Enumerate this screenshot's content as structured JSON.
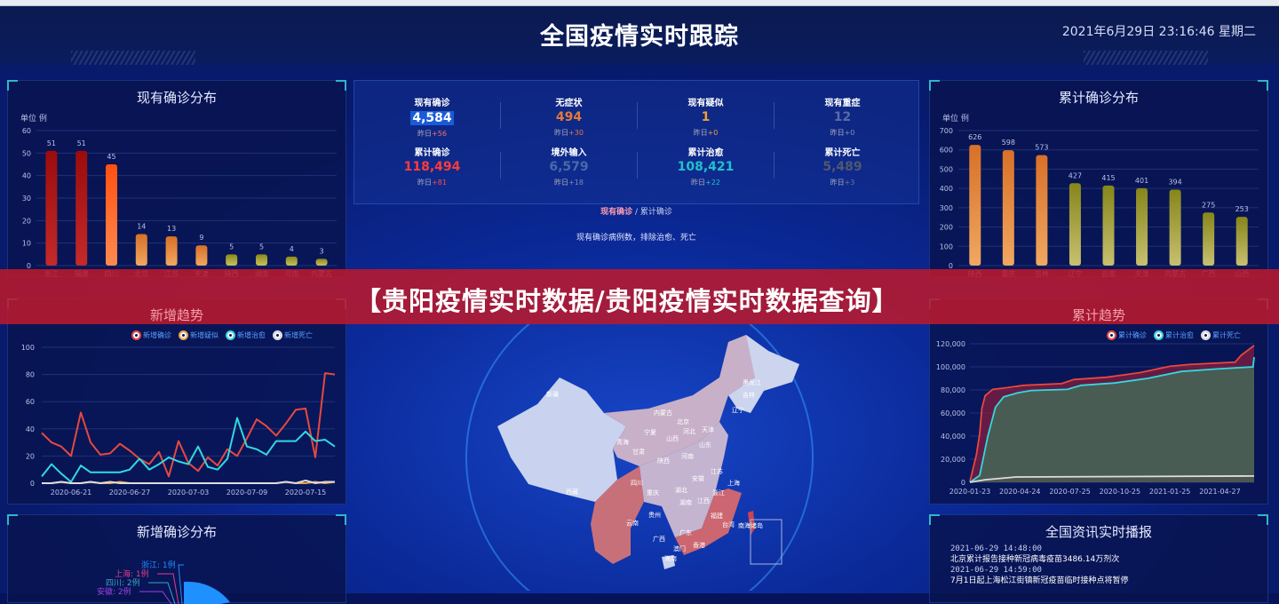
{
  "header": {
    "title": "全国疫情实时跟踪",
    "datetime": "2021年6月29日  23:16:46  星期二"
  },
  "colors": {
    "accent": "#2fb7c8",
    "banner": "#b9192d",
    "confirmed": "#e8483e",
    "recovered": "#32d9e0",
    "suspected": "#f0a040",
    "deaths": "#888888"
  },
  "banner": {
    "text": "【贵阳疫情实时数据/贵阳疫情实时数据查询】"
  },
  "stats": [
    {
      "label": "现有确诊",
      "value": "4,584",
      "yesterday_label": "昨日",
      "delta": "+56",
      "color": "#ffffff",
      "delta_color": "#ff6b6b",
      "highlight": true
    },
    {
      "label": "无症状",
      "value": "494",
      "yesterday_label": "昨日",
      "delta": "+30",
      "color": "#e07a3c",
      "delta_color": "#e07a3c"
    },
    {
      "label": "现有疑似",
      "value": "1",
      "yesterday_label": "昨日",
      "delta": "+0",
      "color": "#f0a030",
      "delta_color": "#f0a030"
    },
    {
      "label": "现有重症",
      "value": "12",
      "yesterday_label": "昨日",
      "delta": "+0",
      "color": "#5a6aa8",
      "delta_color": "#8890b8"
    },
    {
      "label": "累计确诊",
      "value": "118,494",
      "yesterday_label": "昨日",
      "delta": "+81",
      "color": "#ff3b3b",
      "delta_color": "#ff4b4b"
    },
    {
      "label": "境外输入",
      "value": "6,579",
      "yesterday_label": "昨日",
      "delta": "+18",
      "color": "#4a6aa8",
      "delta_color": "#7a8ab8"
    },
    {
      "label": "累计治愈",
      "value": "108,421",
      "yesterday_label": "昨日",
      "delta": "+22",
      "color": "#22c2c8",
      "delta_color": "#22c2c8"
    },
    {
      "label": "累计死亡",
      "value": "5,489",
      "yesterday_label": "昨日",
      "delta": "+3",
      "color": "#505870",
      "delta_color": "#707890"
    }
  ],
  "map_toggle": {
    "active": "现有确诊",
    "separator": "/",
    "inactive": "累计确诊"
  },
  "map_desc": "现有确诊病例数，排除治愈、死亡",
  "map_labels": [
    "新疆",
    "西藏",
    "青海",
    "甘肃",
    "宁夏",
    "内蒙古",
    "黑龙江",
    "吉林",
    "辽宁",
    "北京",
    "天津",
    "山西",
    "河北",
    "山东",
    "陕西",
    "河南",
    "四川",
    "重庆",
    "湖北",
    "安徽",
    "江苏",
    "上海",
    "浙江",
    "湖南",
    "江西",
    "贵州",
    "云南",
    "广西",
    "广东",
    "福建",
    "台湾",
    "香港",
    "澳门",
    "海南",
    "南海诸岛"
  ],
  "chart_data": [
    {
      "id": "current",
      "type": "bar",
      "title": "现有确诊分布",
      "unit_label": "单位 例",
      "categories": [
        "浙江",
        "福建",
        "四川",
        "北京",
        "江苏",
        "天津",
        "陕西",
        "湖南",
        "河南",
        "内蒙古"
      ],
      "values": [
        51,
        51,
        45,
        14,
        13,
        9,
        5,
        5,
        4,
        3
      ],
      "ylim": [
        0,
        60
      ],
      "yticks": [
        0,
        10,
        20,
        30,
        40,
        50,
        60
      ],
      "grid": true
    },
    {
      "id": "cumulative",
      "type": "bar",
      "title": "累计确诊分布",
      "unit_label": "单位 例",
      "categories": [
        "陕西",
        "重庆",
        "吉林",
        "辽宁",
        "云南",
        "天津",
        "内蒙古",
        "广西",
        "山西"
      ],
      "values": [
        626,
        598,
        573,
        427,
        415,
        401,
        394,
        275,
        253
      ],
      "ylim": [
        0,
        700
      ],
      "yticks": [
        0,
        100,
        200,
        300,
        400,
        500,
        600,
        700
      ],
      "grid": true
    },
    {
      "id": "new_trend",
      "type": "line",
      "title": "新增趋势",
      "x_start": "2020-06-18",
      "xticks": [
        "2020-06-21",
        "2020-06-27",
        "2020-07-03",
        "2020-07-09",
        "2020-07-15"
      ],
      "ylim": [
        0,
        100
      ],
      "yticks": [
        0,
        20,
        40,
        60,
        80,
        100
      ],
      "legend": "top-right",
      "series": [
        {
          "name": "新增确诊",
          "color": "#e8483e",
          "values": [
            37,
            30,
            27,
            20,
            52,
            30,
            21,
            22,
            29,
            24,
            18,
            14,
            23,
            5,
            31,
            15,
            9,
            19,
            13,
            25,
            20,
            33,
            47,
            42,
            35,
            44,
            54,
            55,
            19,
            81,
            80
          ]
        },
        {
          "name": "新增疑似",
          "color": "#f0a040",
          "values": [
            0,
            0,
            1,
            0,
            0,
            1,
            0,
            0,
            1,
            0,
            0,
            0,
            0,
            0,
            0,
            0,
            0,
            0,
            0,
            0,
            0,
            0,
            0,
            0,
            0,
            1,
            0,
            0,
            1,
            0,
            1
          ]
        },
        {
          "name": "新增治愈",
          "color": "#32d9e0",
          "values": [
            5,
            14,
            7,
            1,
            13,
            8,
            8,
            8,
            8,
            10,
            18,
            10,
            14,
            19,
            16,
            14,
            27,
            12,
            10,
            18,
            48,
            27,
            25,
            21,
            31,
            31,
            31,
            38,
            31,
            32,
            27
          ]
        },
        {
          "name": "新增死亡",
          "color": "#dddddd",
          "values": [
            0,
            0,
            1,
            0,
            0,
            1,
            0,
            1,
            0,
            0,
            0,
            0,
            0,
            0,
            0,
            0,
            0,
            0,
            0,
            0,
            0,
            0,
            0,
            0,
            0,
            1,
            0,
            2,
            0,
            1,
            1
          ]
        }
      ]
    },
    {
      "id": "cum_trend",
      "type": "area",
      "title": "累计趋势",
      "xticks": [
        "2020-01-23",
        "2020-04-24",
        "2020-07-25",
        "2020-10-25",
        "2021-01-25",
        "2021-04-27"
      ],
      "xlim": [
        "2020-01-23",
        "2021-06-29"
      ],
      "ylim": [
        0,
        120000
      ],
      "yticks": [
        0,
        20000,
        40000,
        60000,
        80000,
        100000,
        120000
      ],
      "legend": "top-right",
      "series": [
        {
          "name": "累计确诊",
          "color": "#e8483e",
          "points": [
            [
              "2020-01-23",
              600
            ],
            [
              "2020-02-04",
              24000
            ],
            [
              "2020-02-10",
              42000
            ],
            [
              "2020-02-14",
              64000
            ],
            [
              "2020-02-20",
              75000
            ],
            [
              "2020-03-05",
              80500
            ],
            [
              "2020-04-01",
              82000
            ],
            [
              "2020-05-01",
              84000
            ],
            [
              "2020-07-10",
              85500
            ],
            [
              "2020-08-01",
              89000
            ],
            [
              "2020-10-01",
              91000
            ],
            [
              "2020-12-01",
              95000
            ],
            [
              "2021-01-25",
              100500
            ],
            [
              "2021-03-01",
              102000
            ],
            [
              "2021-05-25",
              104000
            ],
            [
              "2021-06-05",
              110000
            ],
            [
              "2021-06-29",
              118494
            ]
          ]
        },
        {
          "name": "累计治愈",
          "color": "#32d9e0",
          "points": [
            [
              "2020-01-23",
              0
            ],
            [
              "2020-02-10",
              6000
            ],
            [
              "2020-02-25",
              40000
            ],
            [
              "2020-03-10",
              65000
            ],
            [
              "2020-03-25",
              74000
            ],
            [
              "2020-04-20",
              77500
            ],
            [
              "2020-05-15",
              79500
            ],
            [
              "2020-07-20",
              80500
            ],
            [
              "2020-08-15",
              84000
            ],
            [
              "2020-10-15",
              86000
            ],
            [
              "2020-12-15",
              90000
            ],
            [
              "2021-02-15",
              96000
            ],
            [
              "2021-04-15",
              98000
            ],
            [
              "2021-06-27",
              100000
            ],
            [
              "2021-06-29",
              108421
            ]
          ]
        },
        {
          "name": "累计死亡",
          "color": "#dddddd",
          "points": [
            [
              "2020-01-23",
              17
            ],
            [
              "2020-02-20",
              2200
            ],
            [
              "2020-04-17",
              4600
            ],
            [
              "2021-06-29",
              5489
            ]
          ]
        }
      ]
    },
    {
      "id": "new_dist",
      "type": "pie",
      "title": "新增确诊分布",
      "slices": [
        {
          "label": "浙江: 1例",
          "value": 1,
          "color": "#1e90ff"
        },
        {
          "label": "上海: 1例",
          "value": 1,
          "color": "#e0408a"
        },
        {
          "label": "四川: 2例",
          "value": 2,
          "color": "#3aa8c8"
        },
        {
          "label": "安徽: 2例",
          "value": 2,
          "color": "#a040e0"
        }
      ]
    }
  ],
  "news": {
    "title": "全国资讯实时播报",
    "items": [
      {
        "time": "2021-06-29 14:48:00",
        "text": "北京累计报告接种新冠病毒疫苗3486.14万剂次"
      },
      {
        "time": "2021-06-29 14:59:00",
        "text": "7月1日起上海松江街镇新冠疫苗临时接种点将暂停"
      }
    ]
  }
}
